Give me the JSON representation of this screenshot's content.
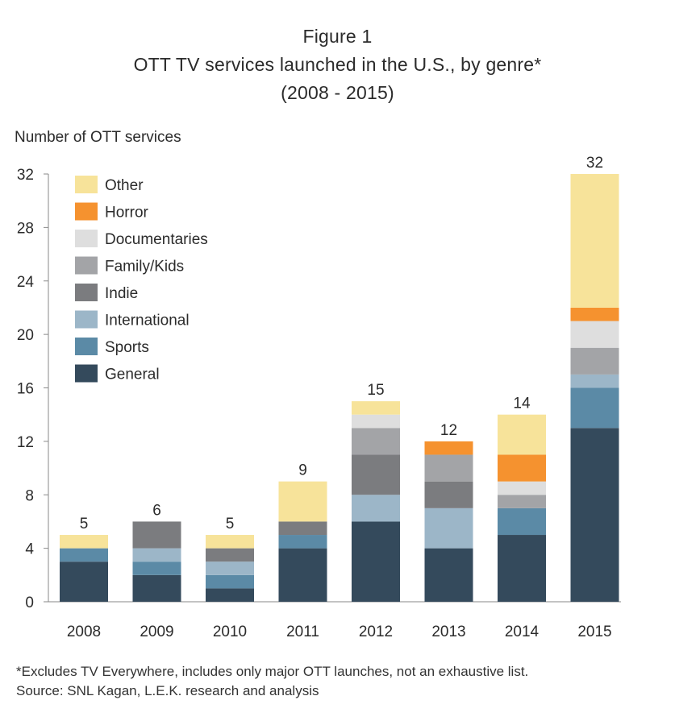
{
  "figure_label": "Figure 1",
  "title": "OTT TV services launched in the U.S., by genre*",
  "subtitle": "(2008 - 2015)",
  "footnote": "*Excludes TV Everywhere, includes only major OTT launches, not an exhaustive list.",
  "source": "Source: SNL Kagan, L.E.K. research and analysis",
  "chart_data": {
    "type": "bar",
    "stacked": true,
    "ylabel": "Number of OTT services",
    "xlabel": "",
    "ylim": [
      0,
      32
    ],
    "yticks": [
      0,
      4,
      8,
      12,
      16,
      20,
      24,
      28,
      32
    ],
    "grid": false,
    "legend_position": "top-left",
    "categories": [
      "2008",
      "2009",
      "2010",
      "2011",
      "2012",
      "2013",
      "2014",
      "2015"
    ],
    "totals": [
      5,
      6,
      5,
      9,
      15,
      12,
      14,
      32
    ],
    "series": [
      {
        "name": "General",
        "color": "#344a5c",
        "values": [
          3,
          2,
          1,
          4,
          6,
          4,
          5,
          13
        ]
      },
      {
        "name": "Sports",
        "color": "#5b8aa6",
        "values": [
          1,
          1,
          1,
          1,
          0,
          0,
          2,
          3
        ]
      },
      {
        "name": "International",
        "color": "#9cb6c8",
        "values": [
          0,
          1,
          1,
          0,
          2,
          3,
          0,
          1
        ]
      },
      {
        "name": "Indie",
        "color": "#7b7c7f",
        "values": [
          0,
          2,
          1,
          1,
          3,
          2,
          0,
          0
        ]
      },
      {
        "name": "Family/Kids",
        "color": "#a3a4a7",
        "values": [
          0,
          0,
          0,
          0,
          2,
          2,
          1,
          2
        ]
      },
      {
        "name": "Documentaries",
        "color": "#dedede",
        "values": [
          0,
          0,
          0,
          0,
          1,
          0,
          1,
          2
        ]
      },
      {
        "name": "Horror",
        "color": "#f5922f",
        "values": [
          0,
          0,
          0,
          0,
          0,
          1,
          2,
          1
        ]
      },
      {
        "name": "Other",
        "color": "#f7e39a",
        "values": [
          1,
          0,
          1,
          3,
          1,
          0,
          3,
          10
        ]
      }
    ]
  }
}
